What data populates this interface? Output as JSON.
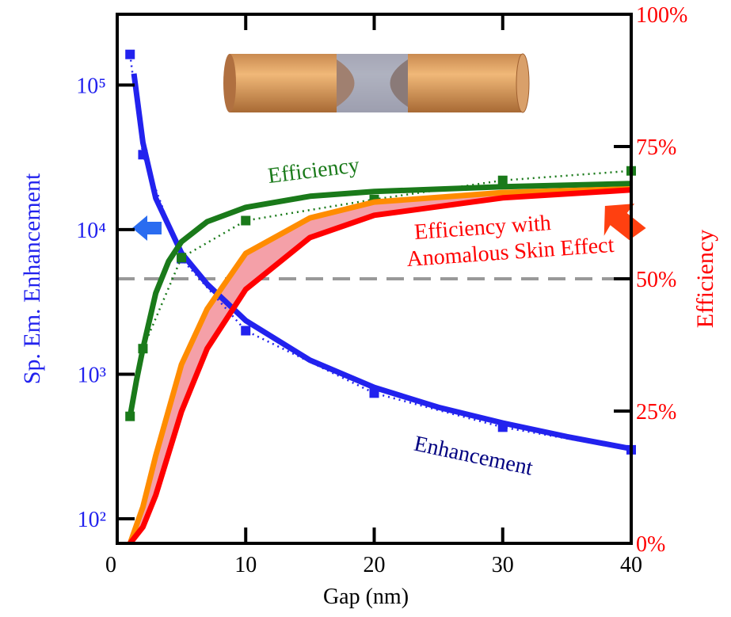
{
  "chart_data": {
    "type": "line",
    "x_label": "Gap (nm)",
    "y_label": "Sp. Em. Enhancement",
    "y2_label": "Efficiency",
    "xlim": [
      0,
      40
    ],
    "xticks": [
      0,
      10,
      20,
      30,
      40
    ],
    "ylim": [
      67.6,
      309000
    ],
    "log_y": true,
    "yticks": [
      {
        "value": 100,
        "label": "10²"
      },
      {
        "value": 1000,
        "label": "10³"
      },
      {
        "value": 10000,
        "label": "10⁴"
      },
      {
        "value": 100000,
        "label": "10⁵"
      }
    ],
    "y2lim": [
      0,
      100
    ],
    "y2ticks": [
      {
        "value": 0,
        "label": "0%"
      },
      {
        "value": 25,
        "label": "25%"
      },
      {
        "value": 50,
        "label": "50%"
      },
      {
        "value": 75,
        "label": "75%"
      },
      {
        "value": 100,
        "label": "100%"
      }
    ],
    "reference_line": {
      "axis": "y2",
      "value": 50,
      "color": "#999999"
    },
    "series": [
      {
        "color": "#2222ee",
        "style": "markers-dotted",
        "x": [
          1,
          2,
          5,
          10,
          20,
          30,
          40
        ],
        "values": [
          163000,
          33000,
          6300,
          2000,
          740,
          430,
          300
        ]
      },
      {
        "color": "#2222ee",
        "style": "solid",
        "x": [
          1.3,
          2,
          3,
          5,
          7,
          10,
          15,
          20,
          25,
          30,
          35,
          40
        ],
        "values": [
          120000,
          40000,
          16500,
          6900,
          4200,
          2350,
          1250,
          810,
          590,
          460,
          370,
          305
        ]
      },
      {
        "color": "#1a7a1a",
        "style": "markers-dotted",
        "axis": "y2",
        "x": [
          1,
          2,
          5,
          10,
          20,
          30,
          40
        ],
        "values": [
          24,
          36.8,
          54,
          61,
          65,
          68.6,
          70.4
        ]
      },
      {
        "color": "#1a7a1a",
        "style": "solid",
        "axis": "y2",
        "x": [
          1,
          1.5,
          2,
          3,
          4,
          5,
          7,
          10,
          15,
          20,
          30,
          40
        ],
        "values": [
          24,
          30.8,
          36.8,
          47.3,
          53.3,
          57,
          60.8,
          63.5,
          65.6,
          66.5,
          67.4,
          68
        ]
      },
      {
        "color": "#ff8c00",
        "style": "solid",
        "axis": "y2",
        "x": [
          1,
          2,
          3,
          5,
          7,
          10,
          15,
          20,
          30,
          40
        ],
        "values": [
          0,
          6.9,
          16.6,
          33.8,
          44.3,
          54.8,
          61.5,
          64.5,
          66.3,
          67
        ]
      },
      {
        "color": "#ff0000",
        "style": "solid",
        "axis": "y2",
        "x": [
          1,
          2,
          3,
          5,
          7,
          10,
          15,
          20,
          30,
          40
        ],
        "values": [
          0,
          3.1,
          9.1,
          24.9,
          36.8,
          48,
          57.8,
          62,
          65.3,
          66.8
        ]
      }
    ],
    "band_fill": "#f4a0a8",
    "annotations": [
      {
        "text": "Efficiency",
        "color": "#1a7a1a"
      },
      {
        "text": "Efficiency with",
        "color": "#ff0000"
      },
      {
        "text": "Anomalous Skin Effect",
        "color": "#ff0000"
      },
      {
        "text": "Enhancement",
        "color": "#000080"
      }
    ]
  }
}
